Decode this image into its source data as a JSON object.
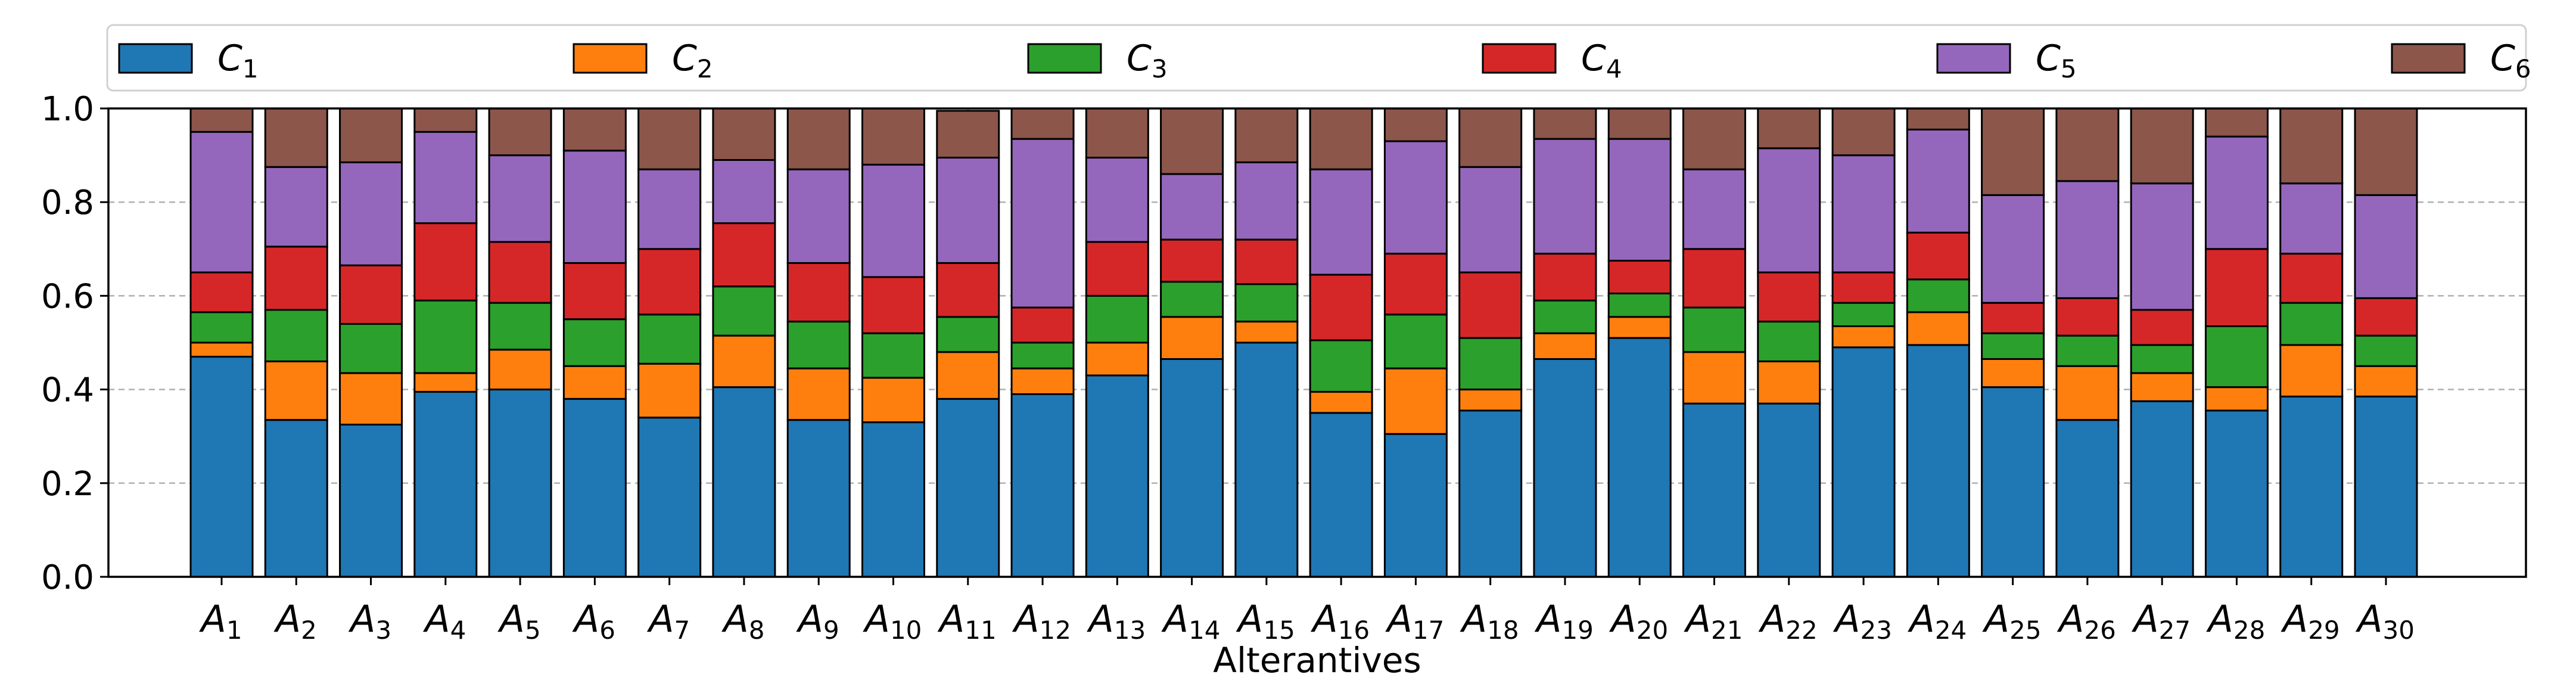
{
  "chart_data": {
    "type": "bar",
    "stacked": true,
    "title": "",
    "xlabel": "Alterantives",
    "ylabel": "",
    "ylim": [
      0,
      1.0
    ],
    "yticks": [
      "0.0",
      "0.2",
      "0.4",
      "0.6",
      "0.8",
      "1.0"
    ],
    "grid": "y-dashed",
    "legend_placement": "top",
    "categories": [
      {
        "base": "A",
        "sub": "1"
      },
      {
        "base": "A",
        "sub": "2"
      },
      {
        "base": "A",
        "sub": "3"
      },
      {
        "base": "A",
        "sub": "4"
      },
      {
        "base": "A",
        "sub": "5"
      },
      {
        "base": "A",
        "sub": "6"
      },
      {
        "base": "A",
        "sub": "7"
      },
      {
        "base": "A",
        "sub": "8"
      },
      {
        "base": "A",
        "sub": "9"
      },
      {
        "base": "A",
        "sub": "10"
      },
      {
        "base": "A",
        "sub": "11"
      },
      {
        "base": "A",
        "sub": "12"
      },
      {
        "base": "A",
        "sub": "13"
      },
      {
        "base": "A",
        "sub": "14"
      },
      {
        "base": "A",
        "sub": "15"
      },
      {
        "base": "A",
        "sub": "16"
      },
      {
        "base": "A",
        "sub": "17"
      },
      {
        "base": "A",
        "sub": "18"
      },
      {
        "base": "A",
        "sub": "19"
      },
      {
        "base": "A",
        "sub": "20"
      },
      {
        "base": "A",
        "sub": "21"
      },
      {
        "base": "A",
        "sub": "22"
      },
      {
        "base": "A",
        "sub": "23"
      },
      {
        "base": "A",
        "sub": "24"
      },
      {
        "base": "A",
        "sub": "25"
      },
      {
        "base": "A",
        "sub": "26"
      },
      {
        "base": "A",
        "sub": "27"
      },
      {
        "base": "A",
        "sub": "28"
      },
      {
        "base": "A",
        "sub": "29"
      },
      {
        "base": "A",
        "sub": "30"
      }
    ],
    "series": [
      {
        "name": {
          "base": "C",
          "sub": "1"
        },
        "color": "#1f77b4",
        "values": [
          0.47,
          0.335,
          0.325,
          0.395,
          0.4,
          0.38,
          0.34,
          0.405,
          0.335,
          0.33,
          0.38,
          0.39,
          0.43,
          0.465,
          0.5,
          0.35,
          0.305,
          0.355,
          0.465,
          0.51,
          0.37,
          0.37,
          0.49,
          0.495,
          0.405,
          0.335,
          0.375,
          0.355,
          0.385,
          0.385
        ]
      },
      {
        "name": {
          "base": "C",
          "sub": "2"
        },
        "color": "#ff7f0e",
        "values": [
          0.03,
          0.125,
          0.11,
          0.04,
          0.085,
          0.07,
          0.115,
          0.11,
          0.11,
          0.095,
          0.1,
          0.055,
          0.07,
          0.09,
          0.045,
          0.045,
          0.14,
          0.045,
          0.055,
          0.045,
          0.11,
          0.09,
          0.045,
          0.07,
          0.06,
          0.115,
          0.06,
          0.05,
          0.11,
          0.065
        ]
      },
      {
        "name": {
          "base": "C",
          "sub": "3"
        },
        "color": "#2ca02c",
        "values": [
          0.065,
          0.11,
          0.105,
          0.155,
          0.1,
          0.1,
          0.105,
          0.105,
          0.1,
          0.095,
          0.075,
          0.055,
          0.1,
          0.075,
          0.08,
          0.11,
          0.115,
          0.11,
          0.07,
          0.05,
          0.095,
          0.085,
          0.05,
          0.07,
          0.055,
          0.065,
          0.06,
          0.13,
          0.09,
          0.065
        ]
      },
      {
        "name": {
          "base": "C",
          "sub": "4"
        },
        "color": "#d62728",
        "values": [
          0.085,
          0.135,
          0.125,
          0.165,
          0.13,
          0.12,
          0.14,
          0.135,
          0.125,
          0.12,
          0.115,
          0.075,
          0.115,
          0.09,
          0.095,
          0.14,
          0.13,
          0.14,
          0.1,
          0.07,
          0.125,
          0.105,
          0.065,
          0.1,
          0.065,
          0.08,
          0.075,
          0.165,
          0.105,
          0.08
        ]
      },
      {
        "name": {
          "base": "C",
          "sub": "5"
        },
        "color": "#9467bd",
        "values": [
          0.3,
          0.17,
          0.22,
          0.195,
          0.185,
          0.24,
          0.17,
          0.135,
          0.2,
          0.24,
          0.225,
          0.36,
          0.18,
          0.14,
          0.165,
          0.225,
          0.24,
          0.225,
          0.245,
          0.26,
          0.17,
          0.265,
          0.25,
          0.22,
          0.23,
          0.25,
          0.27,
          0.24,
          0.15,
          0.22
        ]
      },
      {
        "name": {
          "base": "C",
          "sub": "6"
        },
        "color": "#8c564b",
        "values": [
          0.05,
          0.125,
          0.115,
          0.05,
          0.1,
          0.09,
          0.13,
          0.11,
          0.13,
          0.12,
          0.1,
          0.065,
          0.105,
          0.14,
          0.115,
          0.13,
          0.07,
          0.125,
          0.065,
          0.065,
          0.13,
          0.085,
          0.1,
          0.045,
          0.185,
          0.155,
          0.16,
          0.06,
          0.16,
          0.185
        ]
      }
    ]
  }
}
